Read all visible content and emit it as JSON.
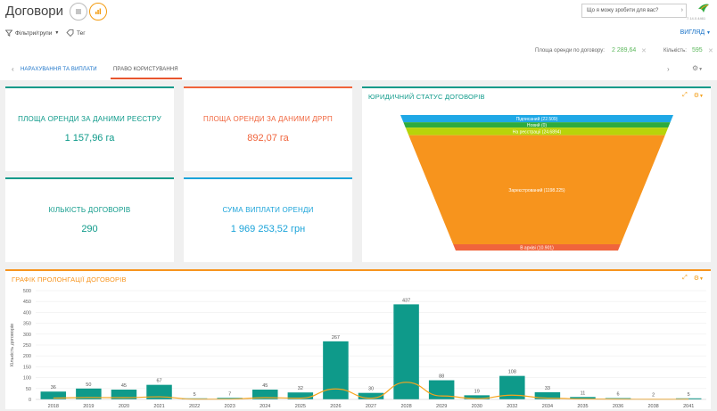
{
  "app": {
    "title": "Договори",
    "search_placeholder": "Що я можу зробити для вас?",
    "version": "7.14.0.4461"
  },
  "toolbar": {
    "filters_label": "Фільтри/групи",
    "tag_label": "Тег",
    "view_label": "ВИГЛЯД"
  },
  "summary": {
    "area_label": "Площа оренди по договору:",
    "area_value": "2 289,64",
    "count_label": "Кількість:",
    "count_value": "595"
  },
  "tabs": [
    {
      "label": "НАРАХУВАННЯ ТА ВИПЛАТИ"
    },
    {
      "label": "ПРАВО КОРИСТУВАННЯ"
    }
  ],
  "kpis": [
    {
      "title": "ПЛОЩА ОРЕНДИ ЗА ДАНИМИ РЕЄСТРУ",
      "value": "1 157,96 га",
      "color": "#0e9a8a"
    },
    {
      "title": "ПЛОЩА ОРЕНДИ ЗА ДАНИМИ ДРРП",
      "value": "892,07 га",
      "color": "#f0643c"
    },
    {
      "title": "КІЛЬКІСТЬ ДОГОВОРІВ",
      "value": "290",
      "color": "#0e9a8a"
    },
    {
      "title": "СУМА ВИПЛАТИ ОРЕНДИ",
      "value": "1 969 253,52 грн",
      "color": "#1aa3d9"
    }
  ],
  "funnel": {
    "title": "ЮРИДИЧНИЙ СТАТУС ДОГОВОРІВ",
    "segments": [
      {
        "label": "Підписаний (22.509)",
        "value": 22.509,
        "color": "#1fa8e6"
      },
      {
        "label": "Новий (0)",
        "value": 0,
        "color": "#2eab3e"
      },
      {
        "label": "На реєстрації (24.6894)",
        "value": 24.6894,
        "color": "#b8d40a"
      },
      {
        "label": "Зареєстрований (1198.225)",
        "value": 1198.225,
        "color": "#f7941d"
      },
      {
        "label": "В архіві (10.901)",
        "value": 10.901,
        "color": "#f0643c"
      }
    ]
  },
  "chart_data": {
    "type": "bar",
    "title": "ГРАФІК ПРОЛОНГАЦІЇ ДОГОВОРІВ",
    "ylabel": "Кількість договорів",
    "ylim": [
      0,
      500
    ],
    "yticks": [
      0,
      50,
      100,
      150,
      200,
      250,
      300,
      350,
      400,
      450,
      500
    ],
    "categories": [
      "2018",
      "2019",
      "2020",
      "2021",
      "2022",
      "2023",
      "2024",
      "2025",
      "2026",
      "2027",
      "2028",
      "2029",
      "2030",
      "2032",
      "2034",
      "2035",
      "2036",
      "2038",
      "2041"
    ],
    "values": [
      36,
      50,
      45,
      67,
      5,
      7,
      45,
      32,
      267,
      30,
      437,
      88,
      19,
      108,
      33,
      11,
      6,
      2,
      5
    ],
    "line_series_color": "#f7a51d",
    "bar_color": "#0e9a8a"
  }
}
